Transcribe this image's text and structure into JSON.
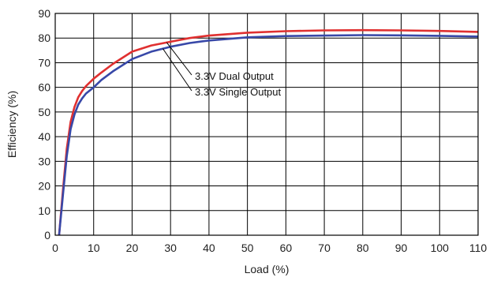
{
  "chart_data": {
    "type": "line",
    "title": "",
    "xlabel": "Load  (%)",
    "ylabel": "Efficiency  (%)",
    "xlim": [
      0,
      110
    ],
    "ylim": [
      0,
      90
    ],
    "xticks": [
      0,
      10,
      20,
      30,
      40,
      50,
      60,
      70,
      80,
      90,
      100,
      110
    ],
    "yticks": [
      0,
      10,
      20,
      30,
      40,
      50,
      60,
      70,
      80,
      90
    ],
    "grid": true,
    "legend": "none",
    "series": [
      {
        "name": "3.3V Dual Output",
        "color": "#e03030",
        "x": [
          1,
          2,
          3,
          4,
          5,
          6,
          7,
          8,
          10,
          12,
          15,
          20,
          25,
          30,
          35,
          40,
          50,
          60,
          70,
          80,
          90,
          100,
          110
        ],
        "y": [
          0,
          18,
          35,
          46,
          52,
          56,
          58.5,
          60.5,
          63.5,
          66,
          69.5,
          74.5,
          77,
          78.5,
          80,
          81,
          82.2,
          82.8,
          83.1,
          83.2,
          83.1,
          82.9,
          82.5
        ]
      },
      {
        "name": "3.3V Single Output",
        "color": "#3848a8",
        "x": [
          1,
          2,
          3,
          4,
          5,
          6,
          7,
          8,
          10,
          12,
          15,
          20,
          25,
          30,
          35,
          40,
          50,
          60,
          70,
          80,
          90,
          100,
          110
        ],
        "y": [
          0,
          16,
          32,
          43,
          49,
          53,
          55.5,
          57.5,
          60,
          63,
          66.5,
          71.5,
          74.5,
          76.5,
          78,
          79,
          80.3,
          80.8,
          81,
          81.2,
          81.1,
          80.9,
          80.6
        ]
      }
    ],
    "annotations": [
      {
        "text": "3.3V Dual Output",
        "target": "3.3V Dual Output"
      },
      {
        "text": "3.3V Single Output",
        "target": "3.3V Single Output"
      }
    ]
  }
}
